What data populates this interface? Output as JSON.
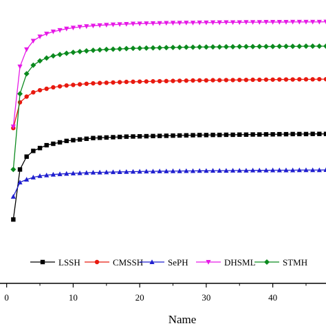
{
  "chart_data": {
    "type": "line",
    "xlabel": "Name",
    "ylabel": "",
    "xlim": [
      -1,
      48
    ],
    "ylim": [
      -16.5,
      1.6
    ],
    "xticks": [
      0,
      10,
      20,
      30,
      40
    ],
    "grid": false,
    "legend_placement": "bottom",
    "x": [
      1,
      2,
      3,
      4,
      5,
      6,
      7,
      8,
      9,
      10,
      11,
      12,
      13,
      14,
      15,
      16,
      17,
      18,
      19,
      20,
      21,
      22,
      23,
      24,
      25,
      26,
      27,
      28,
      29,
      30,
      31,
      32,
      33,
      34,
      35,
      36,
      37,
      38,
      39,
      40,
      41,
      42,
      43,
      44,
      45,
      46,
      47,
      48
    ],
    "series": [
      {
        "name": "LSSH",
        "color": "#000000",
        "marker": "square",
        "values": [
          -12.8,
          -9.3,
          -8.4,
          -8.0,
          -7.8,
          -7.6,
          -7.5,
          -7.4,
          -7.3,
          -7.25,
          -7.2,
          -7.15,
          -7.1,
          -7.08,
          -7.06,
          -7.04,
          -7.02,
          -7.0,
          -6.99,
          -6.98,
          -6.97,
          -6.96,
          -6.95,
          -6.94,
          -6.93,
          -6.92,
          -6.91,
          -6.9,
          -6.89,
          -6.89,
          -6.88,
          -6.88,
          -6.87,
          -6.87,
          -6.86,
          -6.86,
          -6.85,
          -6.85,
          -6.84,
          -6.84,
          -6.83,
          -6.83,
          -6.82,
          -6.82,
          -6.82,
          -6.81,
          -6.81,
          -6.81
        ]
      },
      {
        "name": "CMSSH",
        "color": "#e8190f",
        "marker": "circle",
        "values": [
          -6.4,
          -4.6,
          -4.2,
          -3.9,
          -3.75,
          -3.65,
          -3.55,
          -3.48,
          -3.42,
          -3.38,
          -3.34,
          -3.3,
          -3.27,
          -3.25,
          -3.23,
          -3.21,
          -3.19,
          -3.17,
          -3.16,
          -3.15,
          -3.14,
          -3.13,
          -3.12,
          -3.11,
          -3.1,
          -3.09,
          -3.08,
          -3.07,
          -3.06,
          -3.06,
          -3.05,
          -3.05,
          -3.04,
          -3.04,
          -3.03,
          -3.03,
          -3.02,
          -3.02,
          -3.01,
          -3.01,
          -3.0,
          -3.0,
          -3.0,
          -2.99,
          -2.99,
          -2.99,
          -2.98,
          -2.98
        ]
      },
      {
        "name": "SePH",
        "color": "#1f1fcf",
        "marker": "triangle-up",
        "values": [
          -11.2,
          -10.2,
          -10.0,
          -9.85,
          -9.75,
          -9.7,
          -9.65,
          -9.62,
          -9.59,
          -9.57,
          -9.55,
          -9.53,
          -9.51,
          -9.5,
          -9.49,
          -9.48,
          -9.47,
          -9.46,
          -9.45,
          -9.44,
          -9.43,
          -9.43,
          -9.42,
          -9.42,
          -9.41,
          -9.41,
          -9.4,
          -9.4,
          -9.39,
          -9.39,
          -9.38,
          -9.38,
          -9.38,
          -9.37,
          -9.37,
          -9.37,
          -9.36,
          -9.36,
          -9.36,
          -9.35,
          -9.35,
          -9.35,
          -9.35,
          -9.34,
          -9.34,
          -9.34,
          -9.34,
          -9.33
        ]
      },
      {
        "name": "DHSML",
        "color": "#e619e6",
        "marker": "triangle-down",
        "values": [
          -6.3,
          -2.1,
          -0.9,
          -0.3,
          0.0,
          0.2,
          0.35,
          0.45,
          0.55,
          0.62,
          0.68,
          0.72,
          0.76,
          0.79,
          0.82,
          0.84,
          0.86,
          0.88,
          0.9,
          0.91,
          0.92,
          0.93,
          0.94,
          0.95,
          0.96,
          0.96,
          0.97,
          0.97,
          0.98,
          0.98,
          0.99,
          0.99,
          1.0,
          1.0,
          1.0,
          1.01,
          1.01,
          1.01,
          1.02,
          1.02,
          1.02,
          1.02,
          1.03,
          1.03,
          1.03,
          1.03,
          1.03,
          1.04
        ]
      },
      {
        "name": "STMH",
        "color": "#0b8a1e",
        "marker": "diamond",
        "values": [
          -9.3,
          -4.0,
          -2.6,
          -2.0,
          -1.7,
          -1.5,
          -1.35,
          -1.25,
          -1.17,
          -1.1,
          -1.05,
          -1.0,
          -0.96,
          -0.93,
          -0.9,
          -0.88,
          -0.86,
          -0.84,
          -0.82,
          -0.81,
          -0.8,
          -0.79,
          -0.78,
          -0.77,
          -0.76,
          -0.75,
          -0.74,
          -0.74,
          -0.73,
          -0.73,
          -0.72,
          -0.72,
          -0.71,
          -0.71,
          -0.7,
          -0.7,
          -0.7,
          -0.69,
          -0.69,
          -0.69,
          -0.68,
          -0.68,
          -0.68,
          -0.68,
          -0.67,
          -0.67,
          -0.67,
          -0.67
        ]
      }
    ]
  }
}
